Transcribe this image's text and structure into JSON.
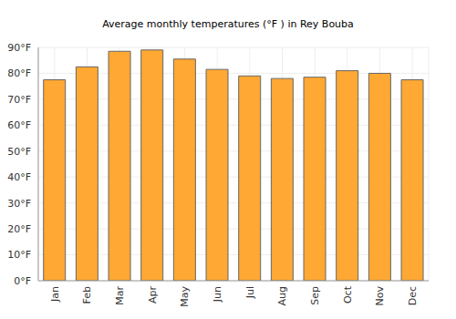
{
  "chart_data": {
    "type": "bar",
    "title": "Average monthly temperatures (°F ) in Rey Bouba",
    "categories": [
      "Jan",
      "Feb",
      "Mar",
      "Apr",
      "May",
      "Jun",
      "Jul",
      "Aug",
      "Sep",
      "Oct",
      "Nov",
      "Dec"
    ],
    "values": [
      77.5,
      82.5,
      88.5,
      89,
      85.5,
      81.5,
      79,
      78,
      78.5,
      81,
      80,
      77.5
    ],
    "color": "#ffa833",
    "ylim": [
      0,
      90
    ],
    "yticks": [
      {
        "value": 0,
        "label": "0°F"
      },
      {
        "value": 10,
        "label": "10°F"
      },
      {
        "value": 20,
        "label": "20°F"
      },
      {
        "value": 30,
        "label": "30°F"
      },
      {
        "value": 40,
        "label": "40°F"
      },
      {
        "value": 50,
        "label": "50°F"
      },
      {
        "value": 60,
        "label": "60°F"
      },
      {
        "value": 70,
        "label": "70°F"
      },
      {
        "value": 80,
        "label": "80°F"
      },
      {
        "value": 90,
        "label": "90°F"
      }
    ],
    "grid": true
  }
}
